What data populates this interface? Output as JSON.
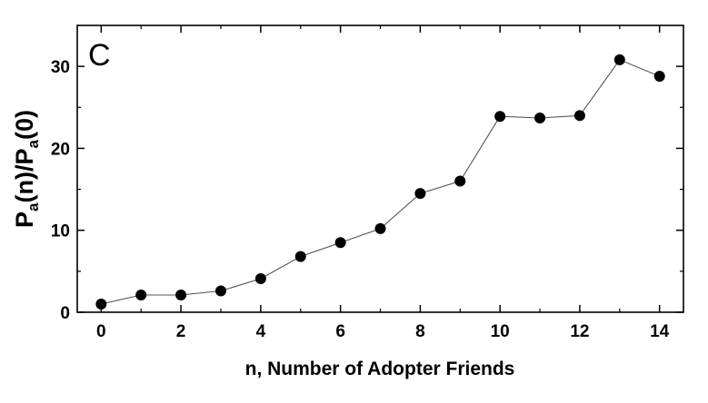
{
  "chart_data": {
    "type": "line",
    "panel_label": "C",
    "xlabel": "n, Number of Adopter Friends",
    "ylabel_parts": [
      "P",
      "a",
      "(n)/P",
      "a",
      "(0)"
    ],
    "xlim": [
      -0.6,
      14.6
    ],
    "ylim": [
      0,
      35
    ],
    "x_ticks_major": [
      0,
      2,
      4,
      6,
      8,
      10,
      12,
      14
    ],
    "x_tick_labels": [
      "0",
      "2",
      "4",
      "6",
      "8",
      "10",
      "12",
      "14"
    ],
    "y_ticks_major": [
      0,
      10,
      20,
      30
    ],
    "y_tick_labels": [
      "0",
      "10",
      "20",
      "30"
    ],
    "grid": false,
    "legend": "none",
    "series": [
      {
        "x": [
          0,
          1,
          2,
          3,
          4,
          5,
          6,
          7,
          8,
          9,
          10,
          11,
          12,
          13,
          14
        ],
        "y": [
          1.0,
          2.1,
          2.1,
          2.6,
          4.1,
          6.8,
          8.5,
          10.2,
          14.5,
          16.0,
          23.9,
          23.7,
          24.0,
          30.8,
          28.8
        ],
        "color": "#000000",
        "marker": "filled-circle"
      }
    ]
  }
}
